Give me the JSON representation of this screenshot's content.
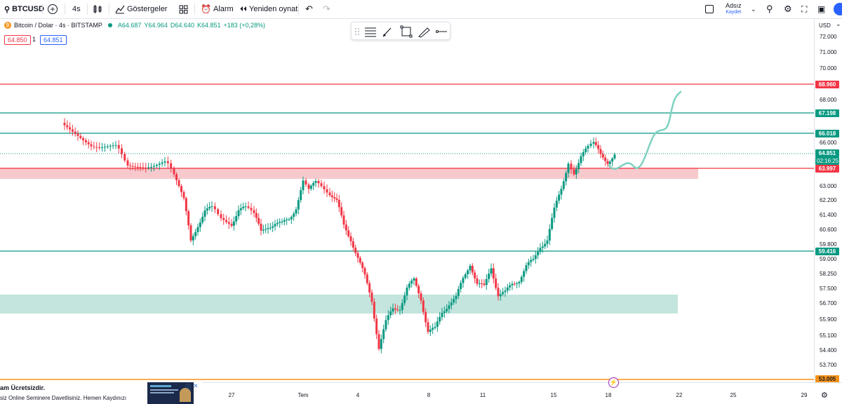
{
  "toolbar": {
    "symbol": "BTCUSD",
    "interval": "4s",
    "indicators_label": "Göstergeler",
    "alarm_label": "Alarm",
    "replay_label": "Yeniden oynat",
    "layout_name": "Adsız",
    "save_label": "Kaydet"
  },
  "legend": {
    "title": "Bitcoin / Dolar · 4s · BITSTAMP",
    "open": "A64.687",
    "high": "Y64.964",
    "low": "D64.640",
    "close": "K64.851",
    "change": "+183 (+0,28%)"
  },
  "price_boxes": {
    "sell": "64.850",
    "spread": "1",
    "buy": "64.851"
  },
  "axis": {
    "currency": "USD",
    "ticks": [
      "72.000",
      "71.000",
      "70.000",
      "68.000",
      "66.000",
      "63.000",
      "62.200",
      "61.400",
      "60.600",
      "59.800",
      "59.000",
      "58.250",
      "57.500",
      "56.700",
      "55.900",
      "55.100",
      "54.400",
      "53.700"
    ],
    "x_ticks": [
      "27",
      "Tem",
      "4",
      "8",
      "11",
      "15",
      "18",
      "22",
      "25",
      "29"
    ]
  },
  "levels": {
    "l68960": "68.960",
    "l67198": "67.198",
    "l66018": "66.018",
    "l64851": "64.851",
    "countdown": "02:16:25",
    "l63997": "63.997",
    "l59416": "59.416",
    "l53005": "53.005"
  },
  "colors": {
    "up": "#089981",
    "down": "#f23645",
    "resistance": "#f23645",
    "support": "#089981",
    "forecast": "#7fd1c0"
  },
  "ad": {
    "line1": "am Ücretsizdir.",
    "line2": "siz Online Seminere Davetlisiniz. Hemen Kaydınızı"
  }
}
